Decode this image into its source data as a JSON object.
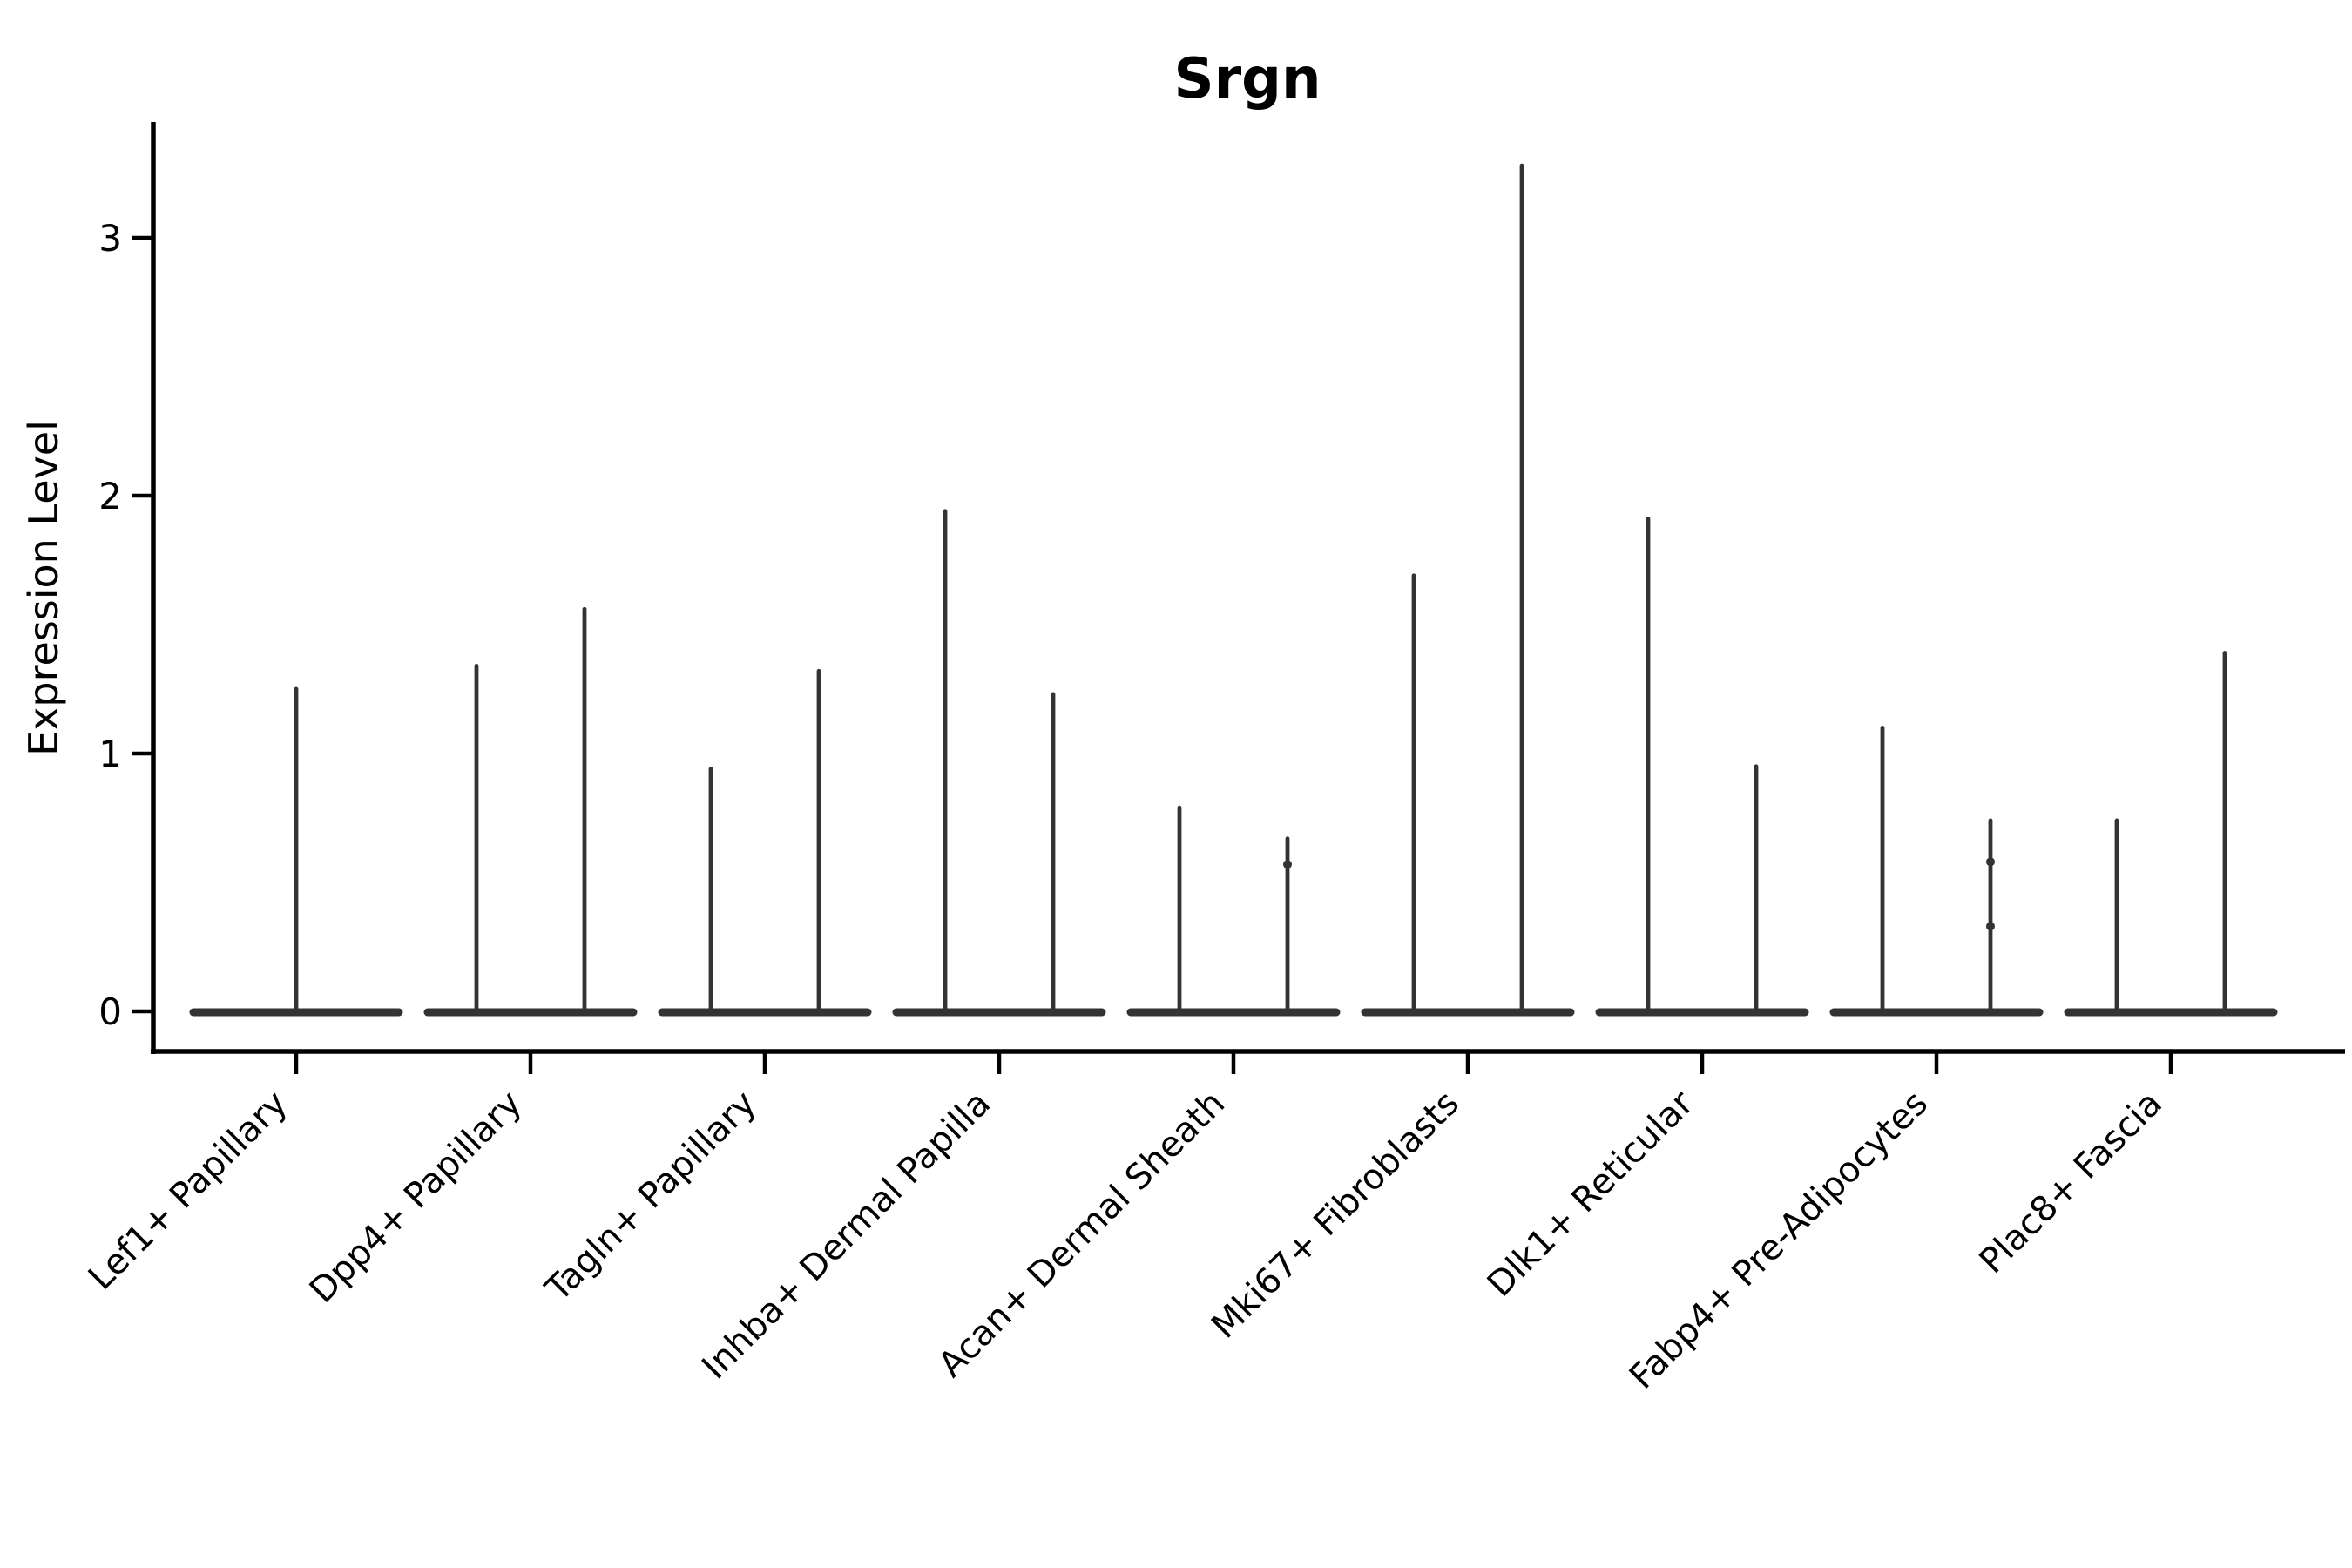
{
  "figure": {
    "title": "Srgn"
  },
  "chart_data": {
    "type": "violin",
    "title": "Srgn",
    "subtitle": "",
    "xlabel": "",
    "ylabel": "Expression Level",
    "y_ticks": [
      0,
      1,
      2,
      3
    ],
    "ylim": [
      -0.15,
      3.45
    ],
    "grid": false,
    "legend": "none",
    "style_note": "Seurat-style single-gene violin plot; per category a wide flat base at 0 with one or two very thin spikes reaching the max expression value",
    "categories": [
      "Lef1+ Papillary",
      "Dpp4+ Papillary",
      "Tagln+ Papillary",
      "Inhba+ Dermal Papilla",
      "Acan+ Dermal Sheath",
      "Mki67+ Fibroblasts",
      "Dlk1+ Reticular",
      "Fabp4+ Pre-Adipocytes",
      "Plac8+ Fascia"
    ],
    "violins": [
      {
        "category": "Lef1+ Papillary",
        "spikes": [
          {
            "position": "center",
            "max": 1.25
          }
        ]
      },
      {
        "category": "Dpp4+ Papillary",
        "spikes": [
          {
            "position": "left",
            "max": 1.34
          },
          {
            "position": "right",
            "max": 1.56
          }
        ]
      },
      {
        "category": "Tagln+ Papillary",
        "spikes": [
          {
            "position": "left",
            "max": 0.94
          },
          {
            "position": "right",
            "max": 1.32
          }
        ]
      },
      {
        "category": "Inhba+ Dermal Papilla",
        "spikes": [
          {
            "position": "left",
            "max": 1.94
          },
          {
            "position": "right",
            "max": 1.23
          }
        ]
      },
      {
        "category": "Acan+ Dermal Sheath",
        "spikes": [
          {
            "position": "left",
            "max": 0.79
          },
          {
            "position": "right",
            "max": 0.67,
            "dots": [
              0.57
            ]
          }
        ]
      },
      {
        "category": "Mki67+ Fibroblasts",
        "spikes": [
          {
            "position": "left",
            "max": 1.69
          },
          {
            "position": "right",
            "max": 3.28
          }
        ]
      },
      {
        "category": "Dlk1+ Reticular",
        "spikes": [
          {
            "position": "left",
            "max": 1.91
          },
          {
            "position": "right",
            "max": 0.95
          }
        ]
      },
      {
        "category": "Fabp4+ Pre-Adipocytes",
        "spikes": [
          {
            "position": "left",
            "max": 1.1
          },
          {
            "position": "right",
            "max": 0.74,
            "dots": [
              0.58,
              0.33
            ]
          }
        ]
      },
      {
        "category": "Plac8+ Fascia",
        "spikes": [
          {
            "position": "left",
            "max": 0.74
          },
          {
            "position": "right",
            "max": 1.39
          }
        ]
      }
    ],
    "colors": {
      "violin": "#333333",
      "axis": "#000000",
      "text": "#000000",
      "background": "#ffffff"
    }
  }
}
